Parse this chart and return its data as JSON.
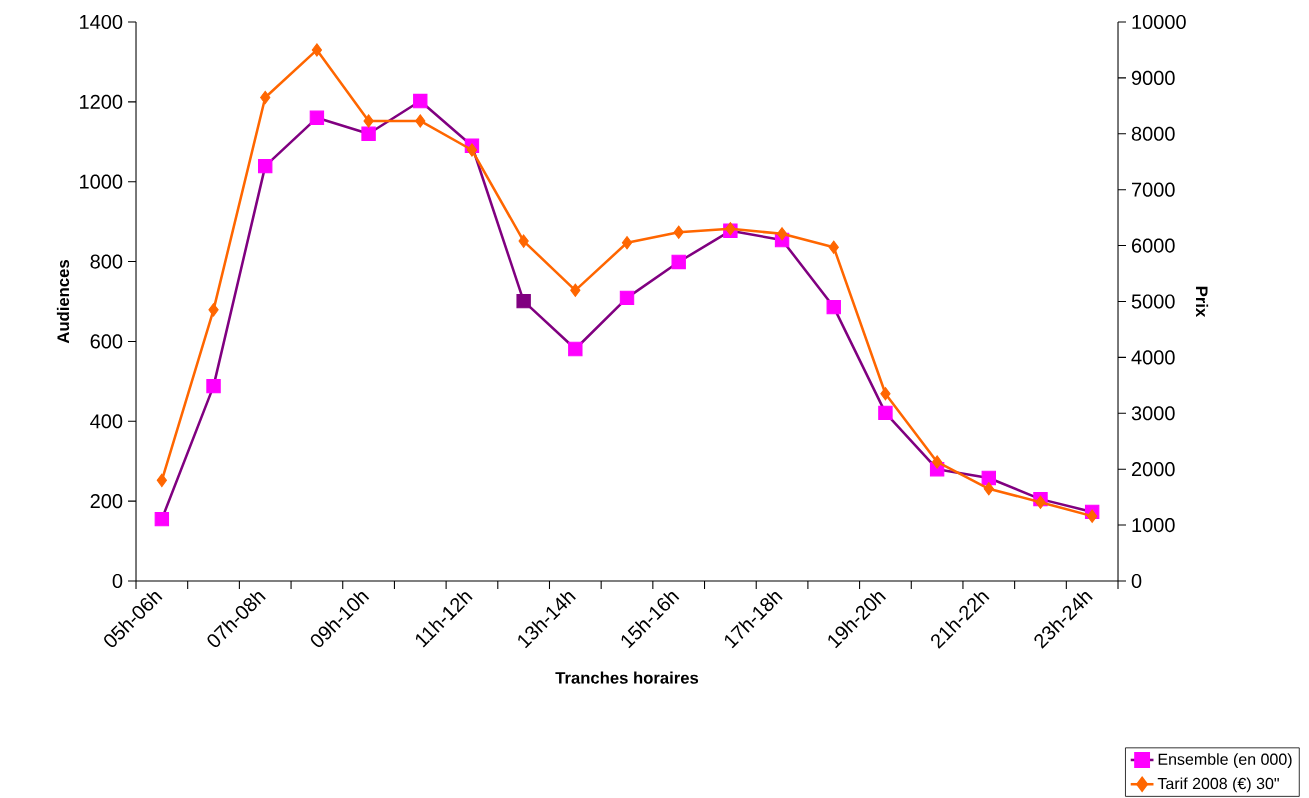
{
  "chart_data": {
    "type": "line",
    "xlabel": "Tranches horaires",
    "ylabel": "Audiences",
    "y2label": "Prix",
    "categories": [
      "05h-06h",
      null,
      "07h-08h",
      null,
      "09h-10h",
      null,
      "11h-12h",
      null,
      "13h-14h",
      null,
      "15h-16h",
      null,
      "17h-18h",
      null,
      "19h-20h",
      null,
      "21h-22h",
      null,
      "23h-24h"
    ],
    "series": [
      {
        "name": "Ensemble (en 000)",
        "color": "#800080",
        "marker": "square",
        "colors": [
          "#ff00ff",
          "#ff00ff",
          "#ff00ff",
          "#ff00ff",
          "#ff00ff",
          "#ff00ff",
          "#ff00ff",
          "#800080",
          "#ff00ff",
          "#ff00ff",
          "#ff00ff",
          "#ff00ff",
          "#ff00ff",
          "#ff00ff",
          "#ff00ff",
          "#ff00ff",
          "#ff00ff",
          "#ff00ff",
          "#ff00ff"
        ],
        "values": [
          155,
          488,
          1039,
          1160,
          1120,
          1202,
          1090,
          701,
          581,
          709,
          799,
          877,
          854,
          686,
          421,
          280,
          258,
          205,
          173
        ]
      },
      {
        "name": "Tarif 2008 (€) 30\"",
        "color": "#ff6600",
        "marker": "diamond",
        "axis": "y2",
        "values": [
          1800,
          4850,
          8650,
          9500,
          8230,
          8230,
          7710,
          6080,
          5200,
          6050,
          6240,
          6300,
          6210,
          5970,
          3350,
          2130,
          1650,
          1410,
          1160
        ]
      }
    ],
    "ylim": [
      0,
      1400
    ],
    "yticks": [
      0,
      200,
      400,
      600,
      800,
      1000,
      1200,
      1400
    ],
    "y2lim": [
      0,
      10000
    ],
    "y2ticks": [
      0,
      1000,
      2000,
      3000,
      4000,
      5000,
      6000,
      7000,
      8000,
      9000,
      10000
    ],
    "grid": false,
    "legend": "bottom right"
  }
}
